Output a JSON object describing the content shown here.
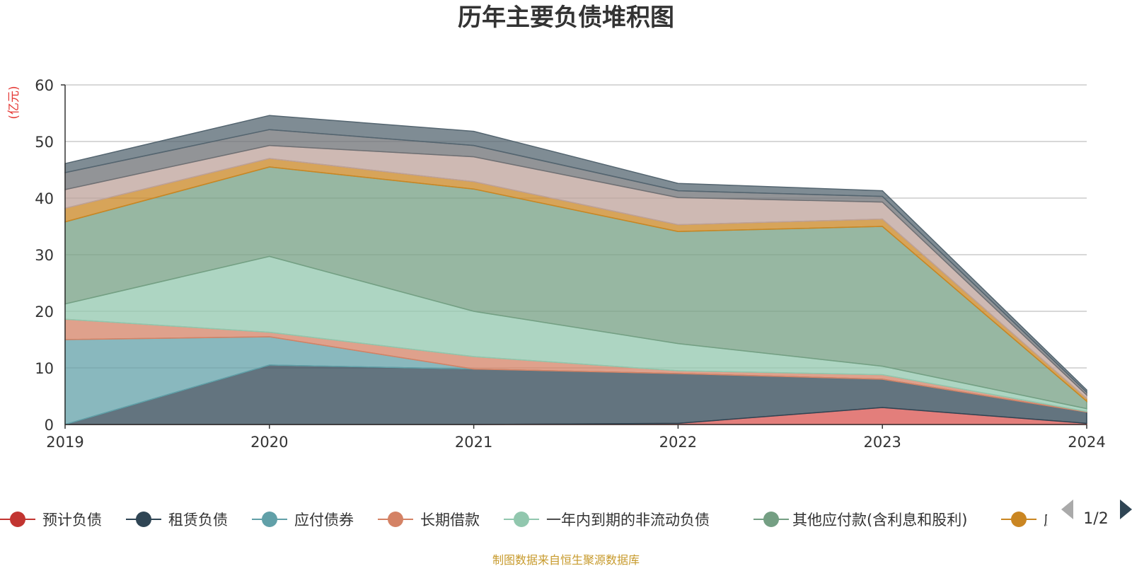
{
  "chart_data": {
    "type": "area",
    "stacked": true,
    "title": "历年主要负债堆积图",
    "ylabel": "(亿元)",
    "ylim": [
      0,
      60
    ],
    "yticks": [
      "0",
      "10",
      "20",
      "30",
      "40",
      "50",
      "60"
    ],
    "grid": true,
    "x": [
      "2019",
      "2020",
      "2021",
      "2022",
      "2023",
      "2024"
    ],
    "series": [
      {
        "name": "预计负债",
        "color": "#d9534f",
        "values": [
          0,
          0,
          0,
          0.2,
          3.0,
          0.2
        ]
      },
      {
        "name": "租赁负债",
        "color": "#2f4554",
        "values": [
          0,
          10.5,
          9.8,
          8.8,
          5.0,
          2.0
        ]
      },
      {
        "name": "应付债券",
        "color": "#61a0a8",
        "values": [
          15.0,
          5.0,
          0,
          0,
          0,
          0
        ]
      },
      {
        "name": "长期借款",
        "color": "#d48265",
        "values": [
          3.6,
          0.8,
          2.2,
          0.5,
          0.8,
          0.1
        ]
      },
      {
        "name": "一年内到期的非流动负债",
        "color": "#91c7ae",
        "values": [
          2.7,
          13.4,
          8.0,
          4.8,
          1.5,
          0.5
        ]
      },
      {
        "name": "其他应付款(含利息和股利)",
        "color": "#749f83",
        "values": [
          14.5,
          15.8,
          21.6,
          19.8,
          24.7,
          1.3
        ]
      },
      {
        "name": "",
        "color": "#ca8622",
        "values": [
          2.4,
          1.5,
          1.3,
          1.2,
          1.3,
          0.5
        ]
      },
      {
        "name": "",
        "color": "#bda29a",
        "values": [
          3.3,
          2.3,
          4.4,
          4.8,
          3.0,
          0.6
        ]
      },
      {
        "name": "",
        "color": "#6e7074",
        "values": [
          3.0,
          2.8,
          2.0,
          1.2,
          1.0,
          0.5
        ]
      },
      {
        "name": "",
        "color": "#546570",
        "values": [
          1.6,
          2.5,
          2.5,
          1.3,
          1.0,
          0.4
        ]
      }
    ],
    "legend_placement": "bottom"
  },
  "legend": {
    "items": [
      {
        "label": "预计负债",
        "color": "#c23531"
      },
      {
        "label": "租赁负债",
        "color": "#2f4554"
      },
      {
        "label": "应付债券",
        "color": "#61a0a8"
      },
      {
        "label": "长期借款",
        "color": "#d48265"
      },
      {
        "label": "一年内到期的非流动负债",
        "color": "#91c7ae"
      },
      {
        "label": "其他应付款(含利息和股利)",
        "color": "#749f83"
      },
      {
        "label": "应",
        "color": "#ca8622"
      }
    ],
    "page": "1/2"
  },
  "source": "制图数据来自恒生聚源数据库"
}
